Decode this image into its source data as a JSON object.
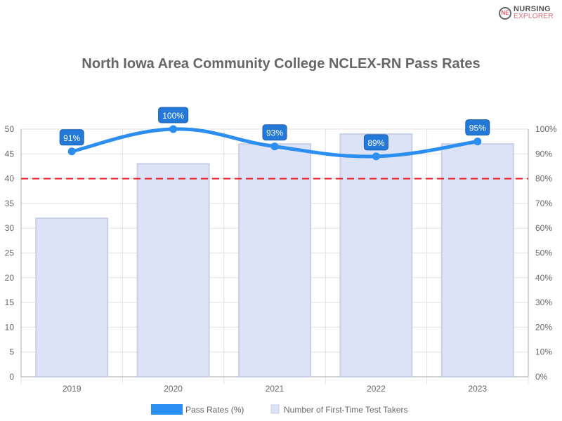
{
  "logo": {
    "line1": "NURSING",
    "line2": "EXPLORER",
    "mark": "NE"
  },
  "chart_data": {
    "type": "bar+line",
    "title": "North Iowa Area Community College NCLEX-RN Pass Rates",
    "categories": [
      "2019",
      "2020",
      "2021",
      "2022",
      "2023"
    ],
    "series": [
      {
        "name": "Pass Rates (%)",
        "type": "line",
        "axis": "right",
        "values": [
          91,
          100,
          93,
          89,
          95
        ],
        "labels": [
          "91%",
          "100%",
          "93%",
          "89%",
          "95%"
        ],
        "color": "#2b8ef0"
      },
      {
        "name": "Number of First-Time Test Takers",
        "type": "bar",
        "axis": "left",
        "values": [
          32,
          43,
          47,
          49,
          47
        ],
        "color": "#dce3f7"
      }
    ],
    "left_axis": {
      "min": 0,
      "max": 50,
      "ticks": [
        "0",
        "5",
        "10",
        "15",
        "20",
        "25",
        "30",
        "35",
        "40",
        "45",
        "50"
      ]
    },
    "right_axis": {
      "min": 0,
      "max": 100,
      "ticks": [
        "0%",
        "10%",
        "20%",
        "30%",
        "40%",
        "50%",
        "60%",
        "70%",
        "80%",
        "90%",
        "100%"
      ]
    },
    "reference_line": {
      "value": 80,
      "axis": "right",
      "color": "#ee1c25",
      "style": "dashed"
    },
    "grid": true,
    "legend": "bottom"
  }
}
